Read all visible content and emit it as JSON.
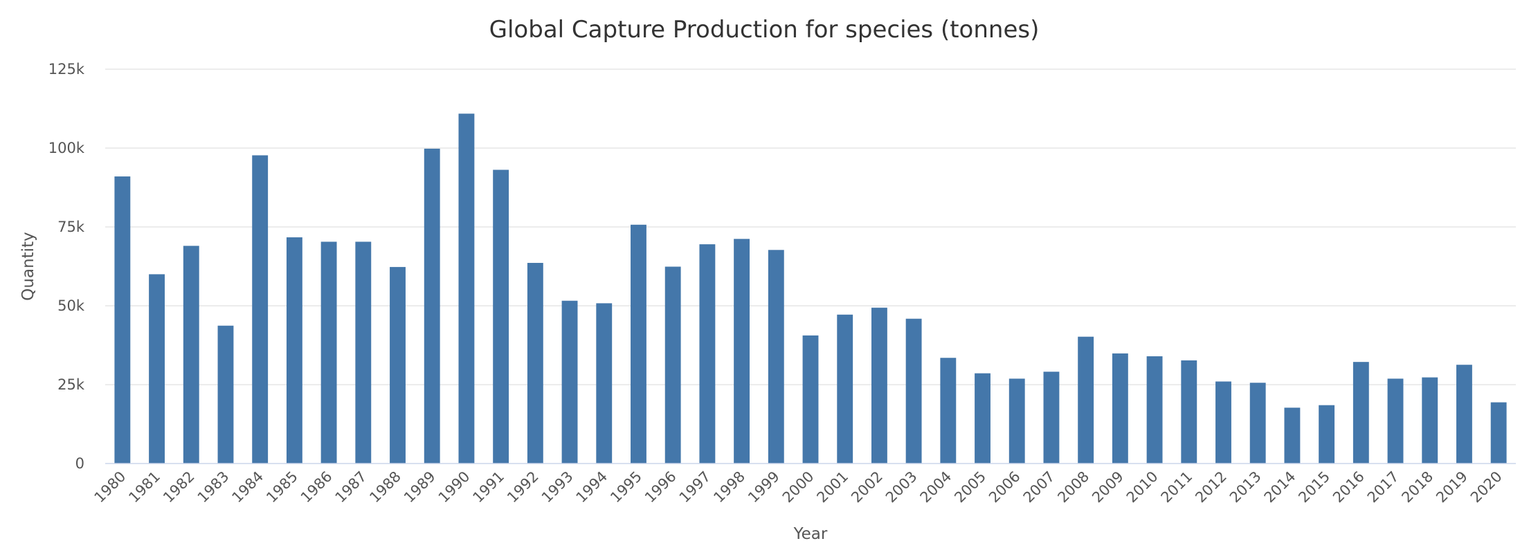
{
  "chart_data": {
    "type": "bar",
    "title": "Global Capture Production for species (tonnes)",
    "xlabel": "Year",
    "ylabel": "Quantity",
    "ylim": [
      0,
      125000
    ],
    "grid": true,
    "legend": "none",
    "bar_color": "#4477aa",
    "y_ticks": [
      {
        "value": 0,
        "label": "0"
      },
      {
        "value": 25000,
        "label": "25k"
      },
      {
        "value": 50000,
        "label": "50k"
      },
      {
        "value": 75000,
        "label": "75k"
      },
      {
        "value": 100000,
        "label": "100k"
      },
      {
        "value": 125000,
        "label": "125k"
      }
    ],
    "categories": [
      "1980",
      "1981",
      "1982",
      "1983",
      "1984",
      "1985",
      "1986",
      "1987",
      "1988",
      "1989",
      "1990",
      "1991",
      "1992",
      "1993",
      "1994",
      "1995",
      "1996",
      "1997",
      "1998",
      "1999",
      "2000",
      "2001",
      "2002",
      "2003",
      "2004",
      "2005",
      "2006",
      "2007",
      "2008",
      "2009",
      "2010",
      "2011",
      "2012",
      "2013",
      "2014",
      "2015",
      "2016",
      "2017",
      "2018",
      "2019",
      "2020"
    ],
    "values": [
      91000,
      60000,
      69000,
      43700,
      97700,
      71700,
      70300,
      70300,
      62300,
      99800,
      110900,
      93100,
      63600,
      51600,
      50800,
      75700,
      62400,
      69500,
      71200,
      67700,
      40600,
      47200,
      49400,
      45900,
      33500,
      28600,
      26900,
      29100,
      40200,
      34900,
      34000,
      32700,
      26000,
      25600,
      17700,
      18500,
      32200,
      26900,
      27300,
      31300,
      19400
    ]
  }
}
